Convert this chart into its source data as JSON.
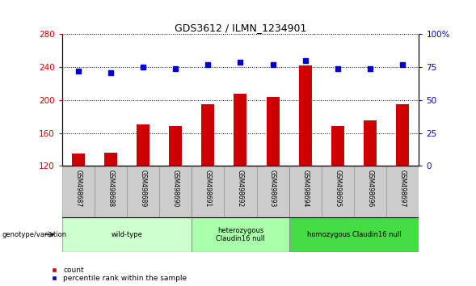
{
  "title": "GDS3612 / ILMN_1234901",
  "samples": [
    "GSM498687",
    "GSM498688",
    "GSM498689",
    "GSM498690",
    "GSM498691",
    "GSM498692",
    "GSM498693",
    "GSM498694",
    "GSM498695",
    "GSM498696",
    "GSM498697"
  ],
  "bar_values": [
    135,
    136,
    170,
    168,
    195,
    208,
    204,
    242,
    168,
    175,
    195
  ],
  "percentile_values": [
    72,
    71,
    75,
    74,
    77,
    79,
    77,
    80,
    74,
    74,
    77
  ],
  "bar_color": "#cc0000",
  "dot_color": "#0000cc",
  "ylim_left": [
    120,
    280
  ],
  "yticks_left": [
    120,
    160,
    200,
    240,
    280
  ],
  "ylim_right": [
    0,
    100
  ],
  "yticks_right": [
    0,
    25,
    50,
    75,
    100
  ],
  "ytick_labels_right": [
    "0",
    "25",
    "50",
    "75",
    "100%"
  ],
  "groups": [
    {
      "label": "wild-type",
      "indices": [
        0,
        1,
        2,
        3
      ],
      "color": "#ccffcc"
    },
    {
      "label": "heterozygous\nClaudin16 null",
      "indices": [
        4,
        5,
        6
      ],
      "color": "#aaffaa"
    },
    {
      "label": "homozygous Claudin16 null",
      "indices": [
        7,
        8,
        9,
        10
      ],
      "color": "#44dd44"
    }
  ],
  "legend_bar_label": "count",
  "legend_dot_label": "percentile rank within the sample",
  "genotype_label": "genotype/variation",
  "background_color": "#ffffff",
  "tick_label_color_left": "#cc0000",
  "tick_label_color_right": "#0000cc",
  "sample_box_color": "#cccccc"
}
